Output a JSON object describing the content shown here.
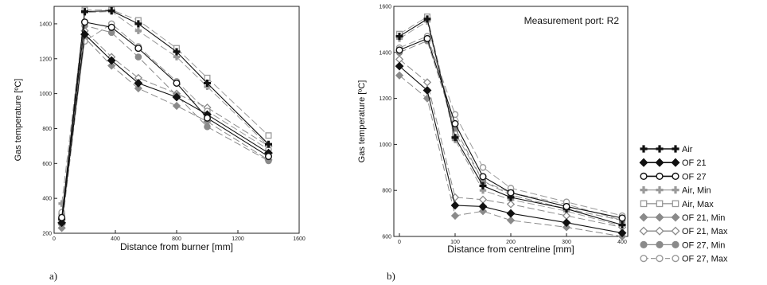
{
  "chart_data": [
    {
      "type": "line",
      "panel_label": "a)",
      "xlabel": "Distance from burner [mm]",
      "ylabel": "Gas temperature [ºC]",
      "xlim": [
        0,
        1600
      ],
      "ylim": [
        200,
        1500
      ],
      "xticks": [
        0,
        400,
        800,
        1200,
        1600
      ],
      "yticks": [
        200,
        400,
        600,
        800,
        1000,
        1200,
        1400
      ],
      "x": [
        50,
        200,
        375,
        550,
        800,
        1000,
        1400
      ],
      "series": [
        {
          "name": "Air",
          "values": [
            280,
            1470,
            1475,
            1400,
            1240,
            1060,
            710
          ]
        },
        {
          "name": "OF 21",
          "values": [
            260,
            1340,
            1190,
            1060,
            980,
            880,
            660
          ]
        },
        {
          "name": "OF 27",
          "values": [
            290,
            1410,
            1380,
            1260,
            1060,
            860,
            640
          ]
        },
        {
          "name": "Air, Min",
          "values": [
            370,
            1465,
            1470,
            1360,
            1210,
            1040,
            700
          ]
        },
        {
          "name": "Air, Max",
          "values": [
            300,
            1480,
            1480,
            1420,
            1260,
            1090,
            760
          ]
        },
        {
          "name": "OF 21, Min",
          "values": [
            230,
            1320,
            1160,
            1030,
            930,
            840,
            620
          ]
        },
        {
          "name": "OF 21, Max",
          "values": [
            250,
            1360,
            1210,
            1090,
            1000,
            920,
            700
          ]
        },
        {
          "name": "OF 27, Min",
          "values": [
            310,
            1390,
            1350,
            1210,
            990,
            810,
            615
          ]
        },
        {
          "name": "OF 27, Max",
          "values": [
            320,
            1300,
            1400,
            1270,
            1070,
            900,
            680
          ]
        }
      ]
    },
    {
      "type": "line",
      "panel_label": "b)",
      "annotation": "Measurement port: R2",
      "xlabel": "Distance from centreline [mm]",
      "ylabel": "Gas temperature [ºC]",
      "xlim": [
        -10,
        410
      ],
      "ylim": [
        600,
        1600
      ],
      "xticks": [
        0,
        100,
        200,
        300,
        400
      ],
      "yticks": [
        600,
        800,
        1000,
        1200,
        1400,
        1600
      ],
      "x": [
        0,
        50,
        100,
        150,
        200,
        300,
        400
      ],
      "series": [
        {
          "name": "Air",
          "values": [
            1470,
            1545,
            1030,
            820,
            770,
            720,
            650
          ]
        },
        {
          "name": "OF 21",
          "values": [
            1340,
            1235,
            735,
            730,
            700,
            660,
            615
          ]
        },
        {
          "name": "OF 27",
          "values": [
            1410,
            1460,
            1090,
            860,
            790,
            730,
            680
          ]
        },
        {
          "name": "Air, Min",
          "values": [
            1460,
            1535,
            1020,
            800,
            760,
            710,
            645
          ]
        },
        {
          "name": "Air, Max",
          "values": [
            1480,
            1555,
            1050,
            840,
            790,
            740,
            670
          ]
        },
        {
          "name": "OF 21, Min",
          "values": [
            1300,
            1200,
            690,
            710,
            670,
            640,
            600
          ]
        },
        {
          "name": "OF 21, Max",
          "values": [
            1370,
            1270,
            770,
            760,
            740,
            690,
            640
          ]
        },
        {
          "name": "OF 27, Min",
          "values": [
            1400,
            1450,
            1070,
            840,
            780,
            720,
            670
          ]
        },
        {
          "name": "OF 27, Max",
          "values": [
            1420,
            1470,
            1130,
            900,
            810,
            750,
            690
          ]
        }
      ]
    }
  ],
  "legend": {
    "placement": "right of panel b",
    "entries": [
      {
        "label": "Air",
        "color": "#111111",
        "marker": "plus",
        "fill": "solid",
        "dashed": false
      },
      {
        "label": "OF 21",
        "color": "#111111",
        "marker": "diamond",
        "fill": "solid",
        "dashed": false
      },
      {
        "label": "OF 27",
        "color": "#111111",
        "marker": "circle",
        "fill": "open",
        "dashed": false
      },
      {
        "label": "Air, Min",
        "color": "#9a9a9a",
        "marker": "plus",
        "fill": "solid",
        "dashed": false
      },
      {
        "label": "Air, Max",
        "color": "#9a9a9a",
        "marker": "square",
        "fill": "open",
        "dashed": false
      },
      {
        "label": "OF 21, Min",
        "color": "#8a8a8a",
        "marker": "diamond",
        "fill": "solid",
        "dashed": false
      },
      {
        "label": "OF 21, Max",
        "color": "#8a8a8a",
        "marker": "diamond",
        "fill": "open",
        "dashed": false
      },
      {
        "label": "OF 27, Min",
        "color": "#8a8a8a",
        "marker": "circle",
        "fill": "solid",
        "dashed": false
      },
      {
        "label": "OF 27, Max",
        "color": "#9a9a9a",
        "marker": "circle",
        "fill": "open",
        "dashed": true
      }
    ]
  }
}
